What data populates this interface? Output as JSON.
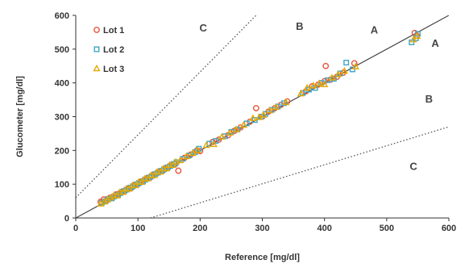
{
  "chart_data": {
    "type": "scatter",
    "title": "",
    "xlabel": "Reference  [mg/dl]",
    "ylabel": "Glucometer  [mg/dl]",
    "xlim": [
      0,
      600
    ],
    "ylim": [
      0,
      600
    ],
    "x_ticks": [
      "0",
      "100",
      "200",
      "300",
      "400",
      "500",
      "600"
    ],
    "y_ticks": [
      "0",
      "100",
      "200",
      "300",
      "400",
      "500",
      "600"
    ],
    "grid": false,
    "legend_position": "top-left",
    "identity_line": {
      "from": [
        0,
        0
      ],
      "to": [
        600,
        600
      ],
      "color": "#444444"
    },
    "zone_boundaries": [
      {
        "points": [
          [
            0,
            60
          ],
          [
            290,
            600
          ]
        ],
        "style": "dotted"
      },
      {
        "points": [
          [
            120,
            0
          ],
          [
            600,
            270
          ]
        ],
        "style": "dotted"
      }
    ],
    "zone_labels": [
      {
        "text": "C",
        "x": 205,
        "y": 560
      },
      {
        "text": "B",
        "x": 360,
        "y": 565
      },
      {
        "text": "A",
        "x": 480,
        "y": 555
      },
      {
        "text": "A",
        "x": 578,
        "y": 515
      },
      {
        "text": "B",
        "x": 568,
        "y": 350
      },
      {
        "text": "C",
        "x": 543,
        "y": 150
      }
    ],
    "series": [
      {
        "name": "Lot 1",
        "color": "#e8553a",
        "marker": "circle",
        "points": [
          [
            40,
            48
          ],
          [
            45,
            55
          ],
          [
            50,
            52
          ],
          [
            55,
            60
          ],
          [
            60,
            62
          ],
          [
            65,
            70
          ],
          [
            70,
            72
          ],
          [
            75,
            78
          ],
          [
            80,
            82
          ],
          [
            85,
            88
          ],
          [
            90,
            90
          ],
          [
            95,
            98
          ],
          [
            100,
            100
          ],
          [
            105,
            108
          ],
          [
            110,
            112
          ],
          [
            115,
            118
          ],
          [
            120,
            120
          ],
          [
            125,
            128
          ],
          [
            130,
            132
          ],
          [
            135,
            138
          ],
          [
            140,
            140
          ],
          [
            145,
            148
          ],
          [
            150,
            152
          ],
          [
            155,
            158
          ],
          [
            160,
            160
          ],
          [
            165,
            140
          ],
          [
            175,
            178
          ],
          [
            185,
            188
          ],
          [
            195,
            200
          ],
          [
            200,
            198
          ],
          [
            220,
            225
          ],
          [
            230,
            232
          ],
          [
            245,
            245
          ],
          [
            255,
            258
          ],
          [
            265,
            268
          ],
          [
            280,
            285
          ],
          [
            290,
            325
          ],
          [
            300,
            300
          ],
          [
            310,
            315
          ],
          [
            320,
            325
          ],
          [
            330,
            335
          ],
          [
            340,
            345
          ],
          [
            370,
            375
          ],
          [
            380,
            390
          ],
          [
            390,
            395
          ],
          [
            400,
            405
          ],
          [
            402,
            450
          ],
          [
            410,
            410
          ],
          [
            420,
            418
          ],
          [
            430,
            430
          ],
          [
            448,
            458
          ],
          [
            545,
            548
          ],
          [
            548,
            540
          ]
        ]
      },
      {
        "name": "Lot 2",
        "color": "#3ea6c8",
        "marker": "square",
        "points": [
          [
            42,
            45
          ],
          [
            48,
            50
          ],
          [
            52,
            56
          ],
          [
            58,
            58
          ],
          [
            62,
            64
          ],
          [
            68,
            68
          ],
          [
            72,
            74
          ],
          [
            78,
            80
          ],
          [
            82,
            84
          ],
          [
            88,
            90
          ],
          [
            92,
            94
          ],
          [
            98,
            100
          ],
          [
            102,
            104
          ],
          [
            108,
            108
          ],
          [
            112,
            114
          ],
          [
            118,
            120
          ],
          [
            122,
            124
          ],
          [
            128,
            130
          ],
          [
            132,
            134
          ],
          [
            138,
            140
          ],
          [
            142,
            144
          ],
          [
            148,
            150
          ],
          [
            152,
            154
          ],
          [
            158,
            160
          ],
          [
            162,
            165
          ],
          [
            172,
            175
          ],
          [
            182,
            185
          ],
          [
            192,
            195
          ],
          [
            198,
            205
          ],
          [
            215,
            220
          ],
          [
            225,
            228
          ],
          [
            240,
            242
          ],
          [
            250,
            255
          ],
          [
            260,
            262
          ],
          [
            275,
            280
          ],
          [
            288,
            290
          ],
          [
            298,
            300
          ],
          [
            305,
            308
          ],
          [
            315,
            320
          ],
          [
            325,
            330
          ],
          [
            335,
            340
          ],
          [
            365,
            370
          ],
          [
            375,
            380
          ],
          [
            385,
            385
          ],
          [
            395,
            400
          ],
          [
            405,
            408
          ],
          [
            415,
            412
          ],
          [
            425,
            428
          ],
          [
            435,
            460
          ],
          [
            445,
            440
          ],
          [
            540,
            520
          ],
          [
            547,
            532
          ],
          [
            550,
            545
          ]
        ]
      },
      {
        "name": "Lot 3",
        "color": "#e8a800",
        "marker": "triangle",
        "points": [
          [
            40,
            42
          ],
          [
            46,
            48
          ],
          [
            51,
            54
          ],
          [
            56,
            60
          ],
          [
            61,
            66
          ],
          [
            66,
            66
          ],
          [
            71,
            76
          ],
          [
            76,
            76
          ],
          [
            81,
            86
          ],
          [
            86,
            86
          ],
          [
            91,
            96
          ],
          [
            96,
            96
          ],
          [
            101,
            106
          ],
          [
            106,
            106
          ],
          [
            111,
            116
          ],
          [
            116,
            116
          ],
          [
            121,
            126
          ],
          [
            126,
            126
          ],
          [
            131,
            136
          ],
          [
            136,
            136
          ],
          [
            141,
            146
          ],
          [
            146,
            146
          ],
          [
            151,
            156
          ],
          [
            156,
            156
          ],
          [
            161,
            166
          ],
          [
            168,
            170
          ],
          [
            178,
            182
          ],
          [
            188,
            192
          ],
          [
            196,
            200
          ],
          [
            210,
            215
          ],
          [
            222,
            218
          ],
          [
            235,
            240
          ],
          [
            248,
            252
          ],
          [
            258,
            262
          ],
          [
            270,
            275
          ],
          [
            285,
            295
          ],
          [
            295,
            298
          ],
          [
            302,
            305
          ],
          [
            312,
            318
          ],
          [
            322,
            328
          ],
          [
            338,
            342
          ],
          [
            362,
            368
          ],
          [
            372,
            385
          ],
          [
            382,
            392
          ],
          [
            392,
            398
          ],
          [
            400,
            395
          ],
          [
            412,
            415
          ],
          [
            422,
            425
          ],
          [
            432,
            435
          ],
          [
            450,
            448
          ],
          [
            543,
            528
          ],
          [
            549,
            538
          ]
        ]
      }
    ]
  }
}
